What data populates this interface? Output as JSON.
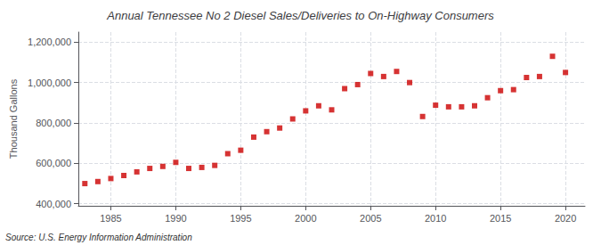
{
  "chart_data": {
    "type": "scatter",
    "title": "Annual Tennessee No 2 Diesel Sales/Deliveries to On-Highway Consumers",
    "ylabel": "Thousand Gallons",
    "annotations": [
      "Source: U.S. Energy Information Administration"
    ],
    "x": [
      1983,
      1984,
      1985,
      1986,
      1987,
      1988,
      1989,
      1990,
      1991,
      1992,
      1993,
      1994,
      1995,
      1996,
      1997,
      1998,
      1999,
      2000,
      2001,
      2002,
      2003,
      2004,
      2005,
      2006,
      2007,
      2008,
      2009,
      2010,
      2011,
      2012,
      2013,
      2014,
      2015,
      2016,
      2017,
      2018,
      2019,
      2020
    ],
    "values": [
      500000,
      510000,
      525000,
      540000,
      558000,
      575000,
      585000,
      605000,
      575000,
      580000,
      590000,
      648000,
      665000,
      730000,
      757000,
      775000,
      820000,
      860000,
      885000,
      865000,
      970000,
      990000,
      1045000,
      1030000,
      1055000,
      1000000,
      832000,
      888000,
      880000,
      880000,
      885000,
      925000,
      960000,
      965000,
      1025000,
      1030000,
      1130000,
      1050000
    ],
    "color": "#cc0000",
    "marker": "square",
    "xlim": [
      1982.5,
      2021.5
    ],
    "xticks": [
      1985,
      1990,
      1995,
      2000,
      2005,
      2010,
      2015,
      2020
    ],
    "ylim": [
      390000,
      1250000
    ],
    "yticks": [
      {
        "value": 400000,
        "label": "400,000"
      },
      {
        "value": 600000,
        "label": "600,000"
      },
      {
        "value": 800000,
        "label": "800,000"
      },
      {
        "value": 1000000,
        "label": "1,000,000"
      },
      {
        "value": 1200000,
        "label": "1,200,000"
      }
    ],
    "grid": true
  }
}
